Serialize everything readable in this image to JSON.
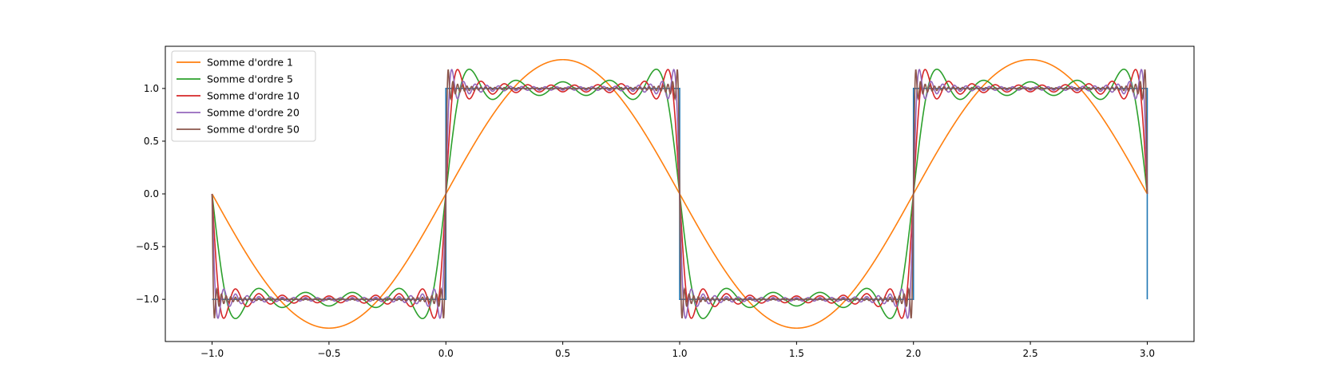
{
  "chart_data": {
    "type": "line",
    "title": "",
    "xlabel": "",
    "ylabel": "",
    "xlim": [
      -1.2,
      3.2
    ],
    "ylim": [
      -1.4,
      1.4
    ],
    "xticks": [
      -1.0,
      -0.5,
      0.0,
      0.5,
      1.0,
      1.5,
      2.0,
      2.5,
      3.0
    ],
    "xtick_labels": [
      "−1.0",
      "−0.5",
      "0.0",
      "0.5",
      "1.0",
      "1.5",
      "2.0",
      "2.5",
      "3.0"
    ],
    "yticks": [
      -1.0,
      -0.5,
      0.0,
      0.5,
      1.0
    ],
    "ytick_labels": [
      "−1.0",
      "−0.5",
      "0.0",
      "0.5",
      "1.0"
    ],
    "grid": false,
    "legend_position": "top-left",
    "square_wave": {
      "color": "#1f77b4",
      "x": [
        -1.0,
        0.0,
        0.0,
        1.0,
        1.0,
        2.0,
        2.0,
        3.0,
        3.0
      ],
      "y": [
        -1,
        -1,
        1,
        1,
        -1,
        -1,
        1,
        1,
        -1
      ]
    },
    "series": [
      {
        "name": "Somme d'ordre 1",
        "order": 1,
        "color": "#ff7f0e"
      },
      {
        "name": "Somme d'ordre 5",
        "order": 5,
        "color": "#2ca02c"
      },
      {
        "name": "Somme d'ordre 10",
        "order": 10,
        "color": "#d62728"
      },
      {
        "name": "Somme d'ordre 20",
        "order": 20,
        "color": "#9467bd"
      },
      {
        "name": "Somme d'ordre 50",
        "order": 50,
        "color": "#8c564b"
      }
    ]
  }
}
